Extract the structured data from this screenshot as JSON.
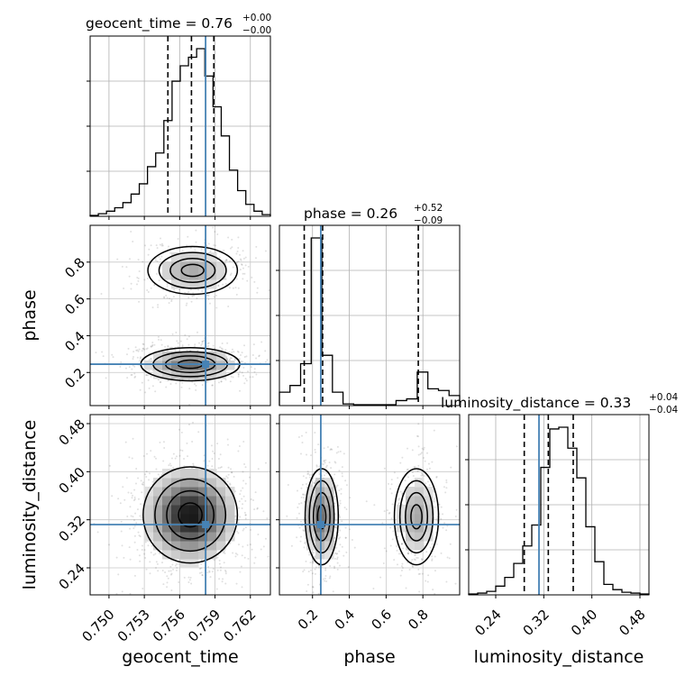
{
  "chart_data": {
    "type": "corner",
    "parameters": [
      "geocent_time",
      "phase",
      "luminosity_distance"
    ],
    "truths": [
      0.7582,
      0.245,
      0.312
    ],
    "ranges": [
      [
        0.7484,
        0.7637
      ],
      [
        0.02,
        1.0
      ],
      [
        0.195,
        0.495
      ]
    ],
    "titles": [
      {
        "label": "geocent_time = 0.76",
        "plus": "+0.00",
        "minus": "−0.00"
      },
      {
        "label": "phase = 0.26",
        "plus": "+0.52",
        "minus": "−0.09"
      },
      {
        "label": "luminosity_distance = 0.33",
        "plus": "+0.04",
        "minus": "−0.04"
      }
    ],
    "quantiles": [
      [
        0.755,
        0.757,
        0.7589
      ],
      [
        0.155,
        0.255,
        0.775
      ],
      [
        0.2875,
        0.3275,
        0.369
      ]
    ],
    "ticks": [
      [
        "0.750",
        "0.753",
        "0.756",
        "0.759",
        "0.762"
      ],
      [
        "0.2",
        "0.4",
        "0.6",
        "0.8"
      ],
      [
        "0.24",
        "0.32",
        "0.40",
        "0.48"
      ]
    ],
    "histograms": [
      {
        "edges_min": 0.7484,
        "edges_max": 0.7637,
        "counts": [
          0.5,
          1.5,
          3,
          5,
          8,
          13,
          19,
          29,
          37,
          56,
          79,
          88,
          93,
          98,
          82,
          64,
          47,
          27,
          15,
          7,
          3,
          1
        ]
      },
      {
        "edges_min": 0.02,
        "edges_max": 1.0,
        "counts": [
          8,
          12,
          25,
          100,
          30,
          8,
          1,
          0.5,
          0.5,
          0.5,
          0.5,
          3,
          4,
          20,
          10,
          9,
          6
        ]
      },
      {
        "edges_min": 0.195,
        "edges_max": 0.495,
        "counts": [
          0.5,
          1,
          2,
          5,
          10,
          18,
          28,
          40,
          73,
          95,
          96,
          84,
          67,
          39,
          19,
          6,
          3,
          1.5,
          1,
          0.5
        ]
      }
    ],
    "pairs": [
      {
        "x": 0,
        "y": 1,
        "modes": [
          {
            "cx": 0.7569,
            "cy": 0.245,
            "sx": 0.0021,
            "sy": 0.045,
            "w": 0.62
          },
          {
            "cx": 0.7571,
            "cy": 0.755,
            "sx": 0.0019,
            "sy": 0.065,
            "w": 0.38
          }
        ]
      },
      {
        "x": 0,
        "y": 2,
        "modes": [
          {
            "cx": 0.7569,
            "cy": 0.328,
            "sx": 0.002,
            "sy": 0.04,
            "w": 1.0
          }
        ]
      },
      {
        "x": 1,
        "y": 2,
        "modes": [
          {
            "cx": 0.25,
            "cy": 0.325,
            "sx": 0.045,
            "sy": 0.04,
            "w": 0.62
          },
          {
            "cx": 0.765,
            "cy": 0.325,
            "sx": 0.06,
            "sy": 0.04,
            "w": 0.38
          }
        ]
      }
    ],
    "truth_color": "#4682b4",
    "grid": true
  }
}
